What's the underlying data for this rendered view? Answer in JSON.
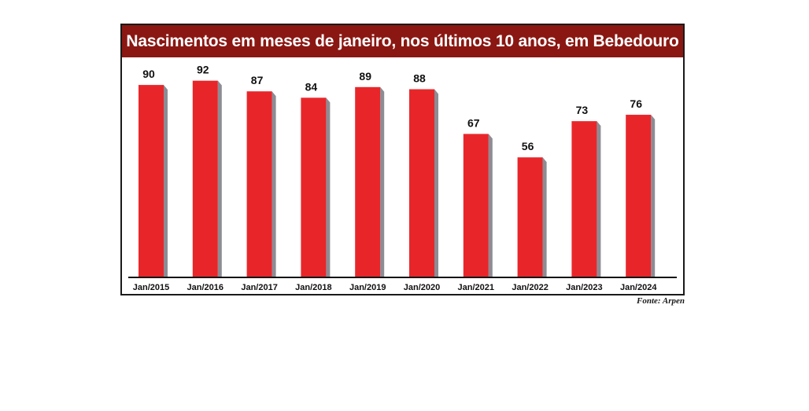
{
  "chart_data": {
    "type": "bar",
    "title": "Nascimentos em meses de janeiro, nos últimos 10 anos, em Bebedouro",
    "categories": [
      "Jan/2015",
      "Jan/2016",
      "Jan/2017",
      "Jan/2018",
      "Jan/2019",
      "Jan/2020",
      "Jan/2021",
      "Jan/2022",
      "Jan/2023",
      "Jan/2024"
    ],
    "values": [
      90,
      92,
      87,
      84,
      89,
      88,
      67,
      56,
      73,
      76
    ],
    "ylim": [
      0,
      100
    ],
    "grid": false,
    "bar_color": "#e8262a",
    "shadow_color": "#8c8c94",
    "title_bg": "#8a1712"
  },
  "source": "Fonte: Arpen"
}
